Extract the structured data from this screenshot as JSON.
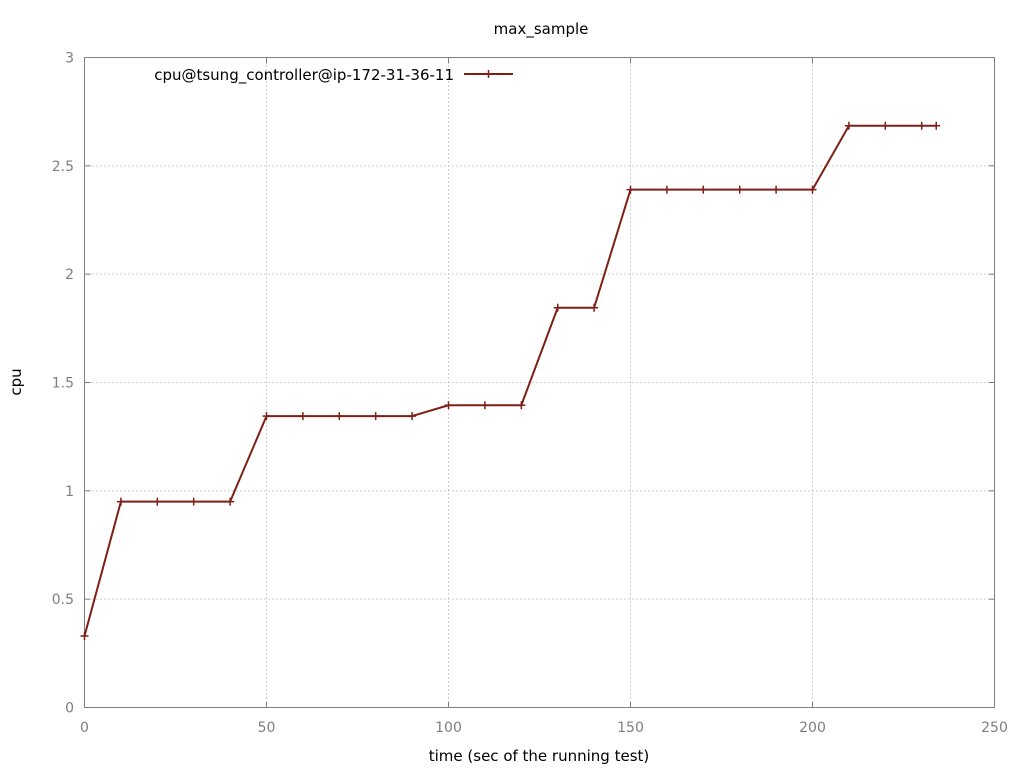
{
  "chart_data": {
    "type": "line",
    "title": "max_sample",
    "xlabel": "time (sec of the running test)",
    "ylabel": "cpu",
    "xlim": [
      0,
      250
    ],
    "ylim": [
      0,
      3
    ],
    "xticks": [
      0,
      50,
      100,
      150,
      200,
      250
    ],
    "yticks": [
      0,
      0.5,
      1,
      1.5,
      2,
      2.5,
      3
    ],
    "xtick_labels": [
      "0",
      "50",
      "100",
      "150",
      "200",
      "250"
    ],
    "ytick_labels": [
      "0",
      "0.5",
      "1",
      "1.5",
      "2",
      "2.5",
      "3"
    ],
    "grid": true,
    "legend_position": "top-left",
    "series": [
      {
        "name": "cpu@tsung_controller@ip-172-31-36-11",
        "color": "#7f1f14",
        "marker": "plus",
        "x": [
          0,
          10,
          20,
          30,
          40,
          50,
          60,
          70,
          80,
          90,
          100,
          110,
          120,
          130,
          140,
          150,
          160,
          170,
          180,
          190,
          200,
          210,
          220,
          230,
          234
        ],
        "y": [
          0.33,
          0.95,
          0.95,
          0.95,
          0.95,
          1.345,
          1.345,
          1.345,
          1.345,
          1.345,
          1.395,
          1.395,
          1.395,
          1.845,
          1.845,
          2.39,
          2.39,
          2.39,
          2.39,
          2.39,
          2.39,
          2.685,
          2.685,
          2.685,
          2.685
        ]
      }
    ]
  }
}
